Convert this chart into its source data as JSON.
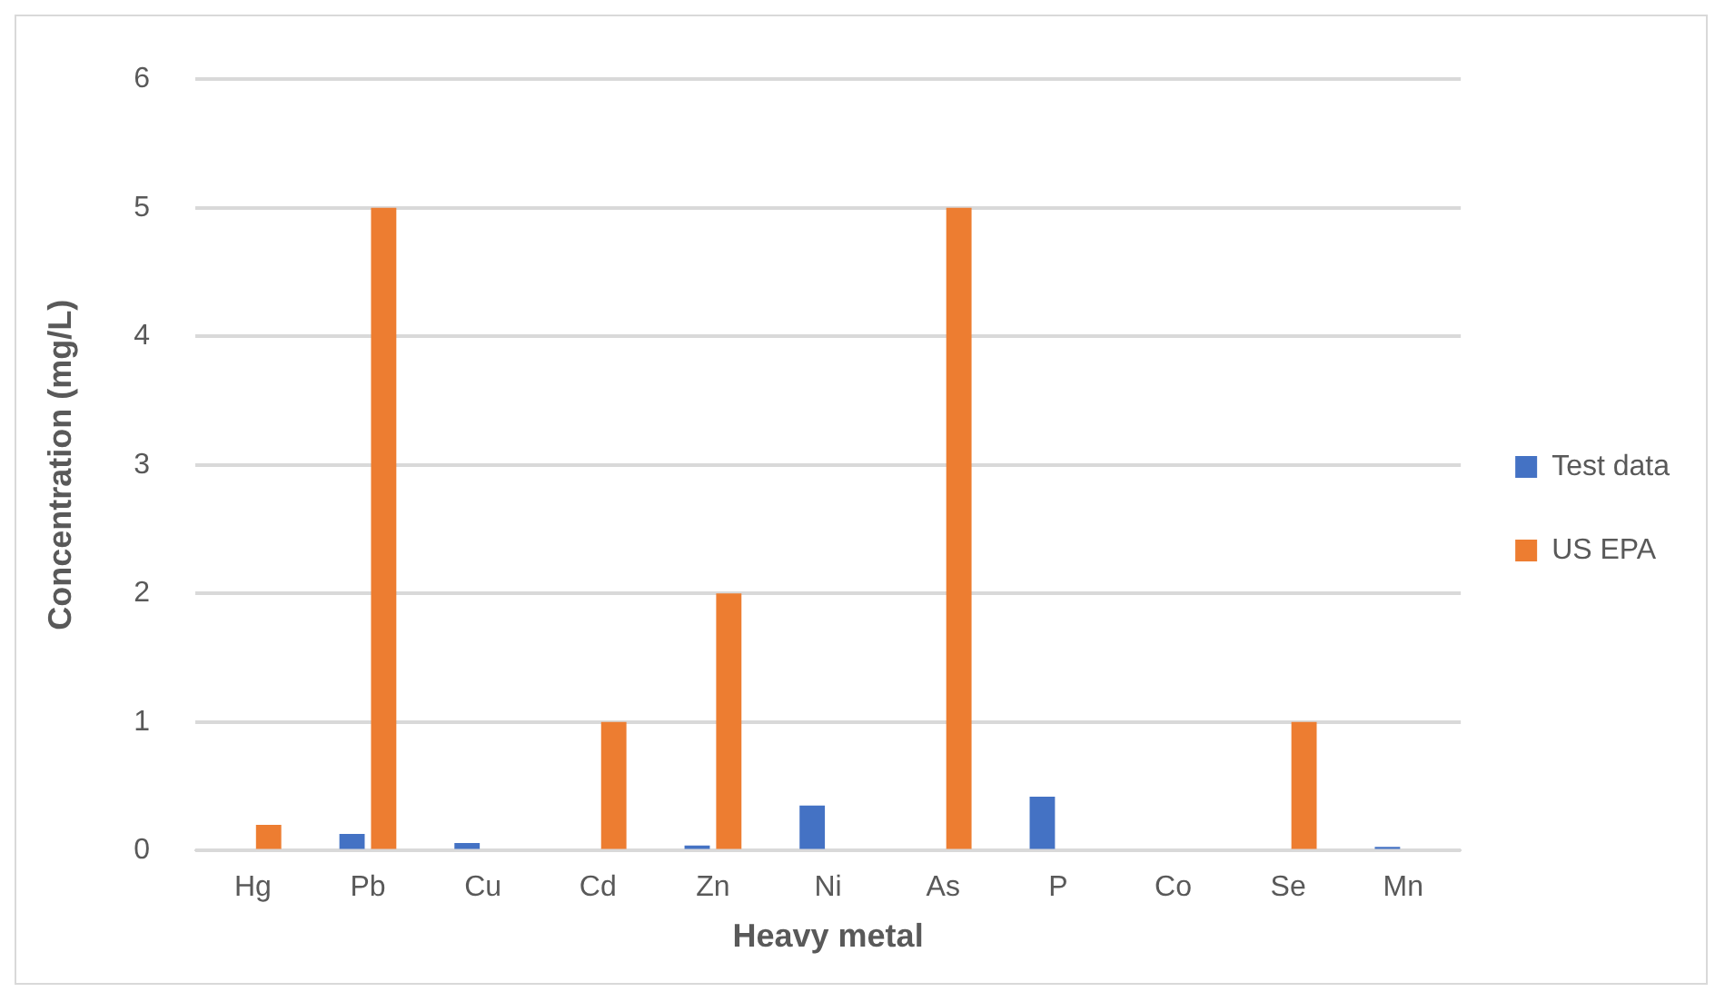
{
  "chart_data": {
    "type": "bar",
    "xlabel": "Heavy metal",
    "ylabel": "Concentration (mg/L)",
    "categories": [
      "Hg",
      "Pb",
      "Cu",
      "Cd",
      "Zn",
      "Ni",
      "As",
      "P",
      "Co",
      "Se",
      "Mn"
    ],
    "series": [
      {
        "name": "Test data",
        "color": "#4472c4",
        "values": [
          null,
          0.13,
          0.06,
          null,
          0.04,
          0.35,
          null,
          0.42,
          null,
          null,
          0.03
        ]
      },
      {
        "name": "US EPA",
        "color": "#ed7d31",
        "values": [
          0.2,
          5,
          null,
          1,
          2,
          null,
          5,
          null,
          null,
          1,
          null
        ]
      }
    ],
    "ylim": [
      0,
      6
    ],
    "yticks": [
      0,
      1,
      2,
      3,
      4,
      5,
      6
    ],
    "grid": "y",
    "legend": "right"
  }
}
